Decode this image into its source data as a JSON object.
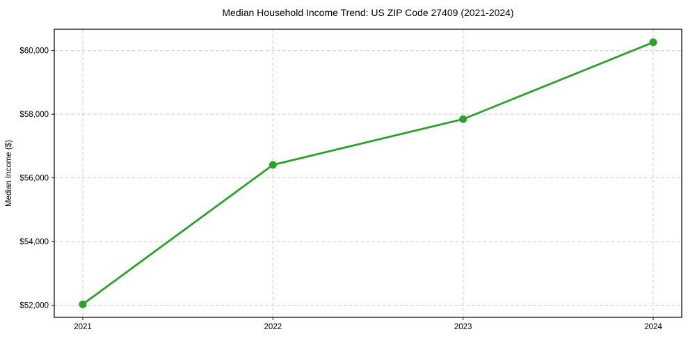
{
  "chart_data": {
    "type": "line",
    "title": "Median Household Income Trend: US ZIP Code 27409 (2021-2024)",
    "xlabel": "",
    "ylabel": "Median Income ($)",
    "x": [
      2021,
      2022,
      2023,
      2024
    ],
    "x_tick_labels": [
      "2021",
      "2022",
      "2023",
      "2024"
    ],
    "series": [
      {
        "name": "Median Household Income",
        "values": [
          52030,
          56410,
          57845,
          60260
        ]
      }
    ],
    "y_ticks": [
      52000,
      54000,
      56000,
      58000,
      60000
    ],
    "y_tick_labels": [
      "$52,000",
      "$54,000",
      "$56,000",
      "$58,000",
      "$60,000"
    ],
    "xlim": [
      2020.85,
      2024.15
    ],
    "ylim": [
      51619,
      60671
    ],
    "grid": true,
    "grid_style": "dashed",
    "legend": "none",
    "colors": {
      "line": "#2ca02c",
      "marker": "#2ca02c",
      "grid": "#cccccc",
      "spine": "#000000",
      "text": "#000000",
      "background": "#ffffff"
    }
  }
}
